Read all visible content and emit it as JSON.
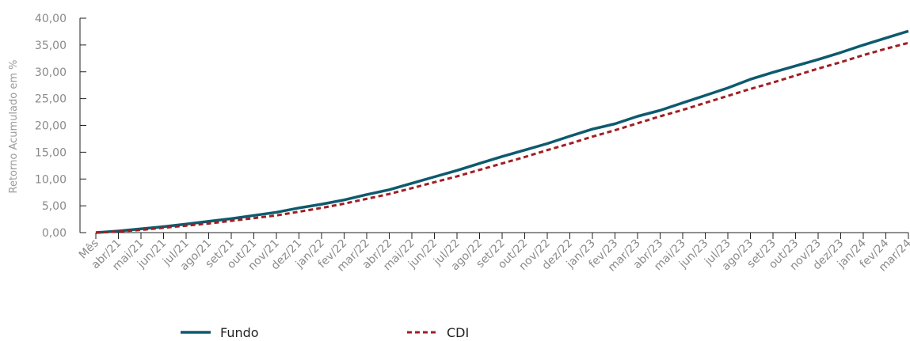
{
  "chart_data": {
    "type": "line",
    "ylabel": "Retorno Acumulado em %",
    "y_ticks": [
      "0,00",
      "5,00",
      "10,00",
      "15,00",
      "20,00",
      "25,00",
      "30,00",
      "35,00",
      "40,00"
    ],
    "ylim": [
      0,
      40
    ],
    "categories": [
      "Mês",
      "abr/21",
      "mai/21",
      "jun/21",
      "jul/21",
      "ago/21",
      "set/21",
      "out/21",
      "nov/21",
      "dez/21",
      "jan/22",
      "fev/22",
      "mar/22",
      "abr/22",
      "mai/22",
      "jun/22",
      "jul/22",
      "ago/22",
      "set/22",
      "out/22",
      "nov/22",
      "dez/22",
      "jan/23",
      "fev/23",
      "mar/23",
      "abr/23",
      "mai/23",
      "jun/23",
      "jul/23",
      "ago/23",
      "set/23",
      "out/23",
      "nov/23",
      "dez/23",
      "jan/24",
      "fev/24",
      "mar/24"
    ],
    "series": [
      {
        "name": "Fundo",
        "color": "#0e5a6e",
        "style": "solid",
        "values": [
          0.0,
          0.3,
          0.7,
          1.1,
          1.6,
          2.1,
          2.6,
          3.2,
          3.8,
          4.6,
          5.3,
          6.1,
          7.1,
          8.0,
          9.2,
          10.4,
          11.6,
          12.9,
          14.2,
          15.4,
          16.6,
          18.0,
          19.3,
          20.3,
          21.7,
          22.8,
          24.2,
          25.6,
          27.0,
          28.6,
          29.9,
          31.1,
          32.3,
          33.6,
          35.0,
          36.3,
          37.6
        ]
      },
      {
        "name": "CDI",
        "color": "#a01e22",
        "style": "dashed",
        "values": [
          0.0,
          0.2,
          0.5,
          0.9,
          1.3,
          1.7,
          2.2,
          2.7,
          3.2,
          3.9,
          4.6,
          5.4,
          6.3,
          7.2,
          8.3,
          9.4,
          10.5,
          11.7,
          12.9,
          14.1,
          15.4,
          16.6,
          17.9,
          19.1,
          20.4,
          21.7,
          22.9,
          24.2,
          25.5,
          26.8,
          28.0,
          29.3,
          30.6,
          31.8,
          33.1,
          34.3,
          35.4
        ]
      }
    ],
    "grid": false,
    "legend_position": "bottom"
  }
}
